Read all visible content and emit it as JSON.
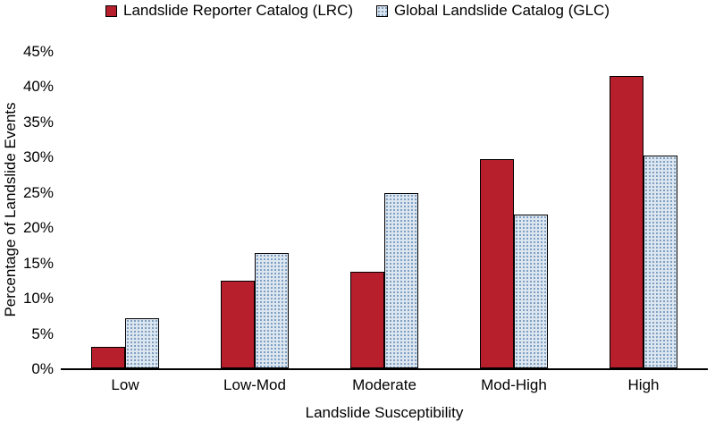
{
  "chart_data": {
    "type": "bar",
    "title": "",
    "categories": [
      "Low",
      "Low-Mod",
      "Moderate",
      "Mod-High",
      "High"
    ],
    "series": [
      {
        "name": "Landslide Reporter Catalog (LRC)",
        "values": [
          3.1,
          12.4,
          13.7,
          29.7,
          41.4
        ],
        "color": "#b81f2d",
        "pattern": "solid"
      },
      {
        "name": "Global Landslide Catalog (GLC)",
        "values": [
          7.1,
          16.3,
          24.8,
          21.8,
          30.2
        ],
        "color": "#dce6f1",
        "dot_color": "#6f94b8",
        "pattern": "dots"
      }
    ],
    "xlabel": "Landslide Susceptibility",
    "ylabel": "Percentage of Landslide Events",
    "ylim": [
      0,
      45
    ],
    "ytick_step": 5,
    "ytick_suffix": "%",
    "legend_position": "top",
    "grid": false
  },
  "colors": {
    "bar_border": "#000000",
    "axis": "#000000",
    "text": "#000000",
    "background": "#ffffff"
  }
}
